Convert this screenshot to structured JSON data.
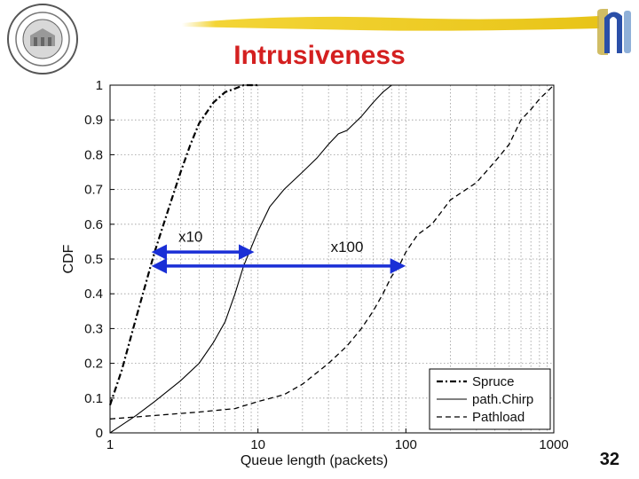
{
  "slide": {
    "title": "Intrusiveness",
    "page_number": "32"
  },
  "icons": {
    "seal": "university-seal-icon",
    "banner": "yellow-brush-banner",
    "logo": "blue-bracket-logo-icon"
  },
  "colors": {
    "title": "#d42020",
    "arrows": "#1a2fd6",
    "banner": "#f2d020",
    "logo": "#2a4fa8"
  },
  "chart_data": {
    "type": "line",
    "xscale": "log",
    "xlabel": "Queue length (packets)",
    "ylabel": "CDF",
    "xlim": [
      1,
      1000
    ],
    "ylim": [
      0,
      1
    ],
    "x_ticks": [
      "1",
      "10",
      "100",
      "1000"
    ],
    "y_ticks": [
      "0",
      "0.1",
      "0.2",
      "0.3",
      "0.4",
      "0.5",
      "0.6",
      "0.7",
      "0.8",
      "0.9",
      "1"
    ],
    "grid": true,
    "legend_position": "bottom-right",
    "series": [
      {
        "name": "Spruce",
        "style": "dash-dot",
        "points": [
          [
            1,
            0.08
          ],
          [
            1.2,
            0.18
          ],
          [
            1.5,
            0.33
          ],
          [
            1.8,
            0.45
          ],
          [
            2,
            0.52
          ],
          [
            2.3,
            0.6
          ],
          [
            2.6,
            0.67
          ],
          [
            3,
            0.75
          ],
          [
            3.5,
            0.83
          ],
          [
            4,
            0.89
          ],
          [
            5,
            0.95
          ],
          [
            6,
            0.98
          ],
          [
            7,
            0.99
          ],
          [
            8,
            1.0
          ],
          [
            10,
            1.0
          ]
        ]
      },
      {
        "name": "path.Chirp",
        "style": "solid",
        "points": [
          [
            1,
            0.0
          ],
          [
            1.5,
            0.05
          ],
          [
            2,
            0.09
          ],
          [
            3,
            0.15
          ],
          [
            4,
            0.2
          ],
          [
            5,
            0.26
          ],
          [
            6,
            0.32
          ],
          [
            7,
            0.4
          ],
          [
            8,
            0.48
          ],
          [
            10,
            0.58
          ],
          [
            12,
            0.65
          ],
          [
            15,
            0.7
          ],
          [
            20,
            0.75
          ],
          [
            25,
            0.79
          ],
          [
            30,
            0.83
          ],
          [
            35,
            0.86
          ],
          [
            40,
            0.87
          ],
          [
            50,
            0.91
          ],
          [
            60,
            0.95
          ],
          [
            70,
            0.98
          ],
          [
            80,
            1.0
          ],
          [
            90,
            1.0
          ]
        ]
      },
      {
        "name": "Pathload",
        "style": "dashed",
        "points": [
          [
            1,
            0.04
          ],
          [
            2,
            0.05
          ],
          [
            4,
            0.06
          ],
          [
            7,
            0.07
          ],
          [
            10,
            0.09
          ],
          [
            15,
            0.11
          ],
          [
            20,
            0.14
          ],
          [
            30,
            0.2
          ],
          [
            40,
            0.25
          ],
          [
            50,
            0.3
          ],
          [
            60,
            0.35
          ],
          [
            70,
            0.4
          ],
          [
            80,
            0.45
          ],
          [
            90,
            0.48
          ],
          [
            100,
            0.52
          ],
          [
            120,
            0.57
          ],
          [
            150,
            0.6
          ],
          [
            200,
            0.67
          ],
          [
            300,
            0.72
          ],
          [
            400,
            0.78
          ],
          [
            500,
            0.83
          ],
          [
            600,
            0.9
          ],
          [
            700,
            0.93
          ],
          [
            800,
            0.96
          ],
          [
            1000,
            1.0
          ]
        ]
      }
    ],
    "annotations": [
      {
        "text": "x10",
        "arrow_from": [
          2,
          0.52
        ],
        "arrow_to": [
          9,
          0.52
        ],
        "label_at": [
          3.5,
          0.55
        ]
      },
      {
        "text": "x100",
        "arrow_from": [
          2,
          0.48
        ],
        "arrow_to": [
          95,
          0.48
        ],
        "label_at": [
          40,
          0.52
        ]
      }
    ]
  }
}
